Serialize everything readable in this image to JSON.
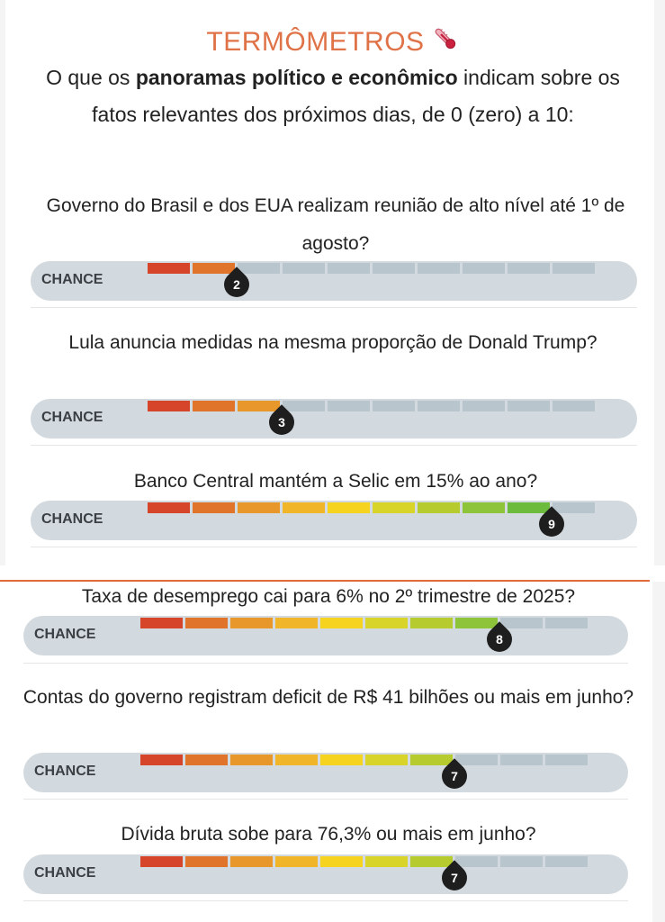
{
  "header": {
    "title": "TERMÔMETROS",
    "icon": "thermometer-icon",
    "intro_before": "O que os ",
    "intro_bold": "panoramas político e econômico",
    "intro_after": " indicam sobre os fatos relevantes dos próximos dias, de 0 (zero) a 10:"
  },
  "chance_label": "CHANCE",
  "scale": {
    "min": 0,
    "max": 10,
    "segment_colors": [
      "#d6452a",
      "#e0742a",
      "#e8982a",
      "#f1b52a",
      "#f5d31e",
      "#d8d42a",
      "#b6cc2e",
      "#8ec43a",
      "#6cbb3c",
      "#4caf3c"
    ],
    "empty_color": "#b9c5cd"
  },
  "items": [
    {
      "question": "Governo do Brasil e dos EUA realizam reunião de alto nível até 1º de agosto?",
      "value": 2
    },
    {
      "question": "Lula anuncia medidas na mesma proporção de Donald Trump?",
      "value": 3
    },
    {
      "question": "Banco Central mantém a Selic em 15% ao ano?",
      "value": 9
    },
    {
      "question": "Taxa de desemprego cai para 6% no 2º trimestre de 2025?",
      "value": 8
    },
    {
      "question": "Contas do governo registram deficit de R$ 41 bilhões ou mais em junho?",
      "value": 7
    },
    {
      "question": "Dívida bruta sobe para 76,3% ou mais em junho?",
      "value": 7
    }
  ],
  "colors": {
    "title": "#e07248",
    "divider": "#e06a3a",
    "pin": "#1e1e1e"
  }
}
